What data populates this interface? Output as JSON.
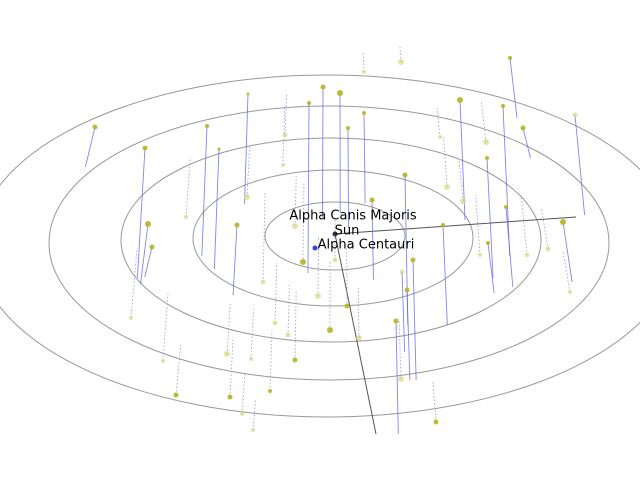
{
  "labels": {
    "star_1": "Alpha Canis Majoris",
    "star_2": "Sun",
    "star_3": "Alpha Centauri"
  }
}
